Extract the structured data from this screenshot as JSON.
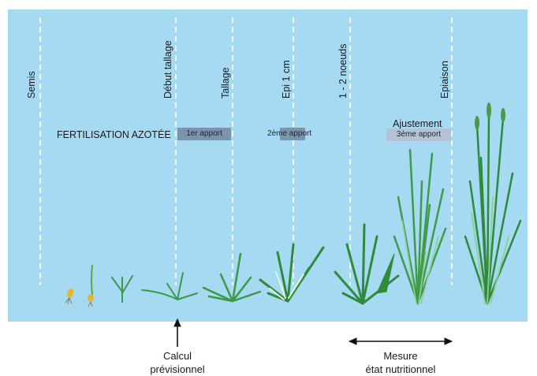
{
  "stages": [
    "Semis",
    "Début tallage",
    "Tallage",
    "Epi 1 cm",
    "1 - 2 noeuds",
    "Epiaison"
  ],
  "fertilisation_label": "FERTILISATION AZOTÉE",
  "apports": {
    "first": "1er apport",
    "second": "2ème apport",
    "ajustement": "Ajustement",
    "third": "3ème apport"
  },
  "bottom": {
    "calcul_line1": "Calcul",
    "calcul_line2": "prévisionnel",
    "mesure_line1": "Mesure",
    "mesure_line2": "état nutritionnel"
  },
  "colors": {
    "sky": "#a6d9f2",
    "box_dark": "#7b94ac",
    "box_light": "#b3c3d3",
    "plant_dark": "#2f8a3c",
    "plant_light": "#7cc47d",
    "seed": "#e3b63a"
  },
  "icons": [
    "arrow-up-icon",
    "double-arrow-icon",
    "seed-icon",
    "wheat-plant-icon"
  ]
}
